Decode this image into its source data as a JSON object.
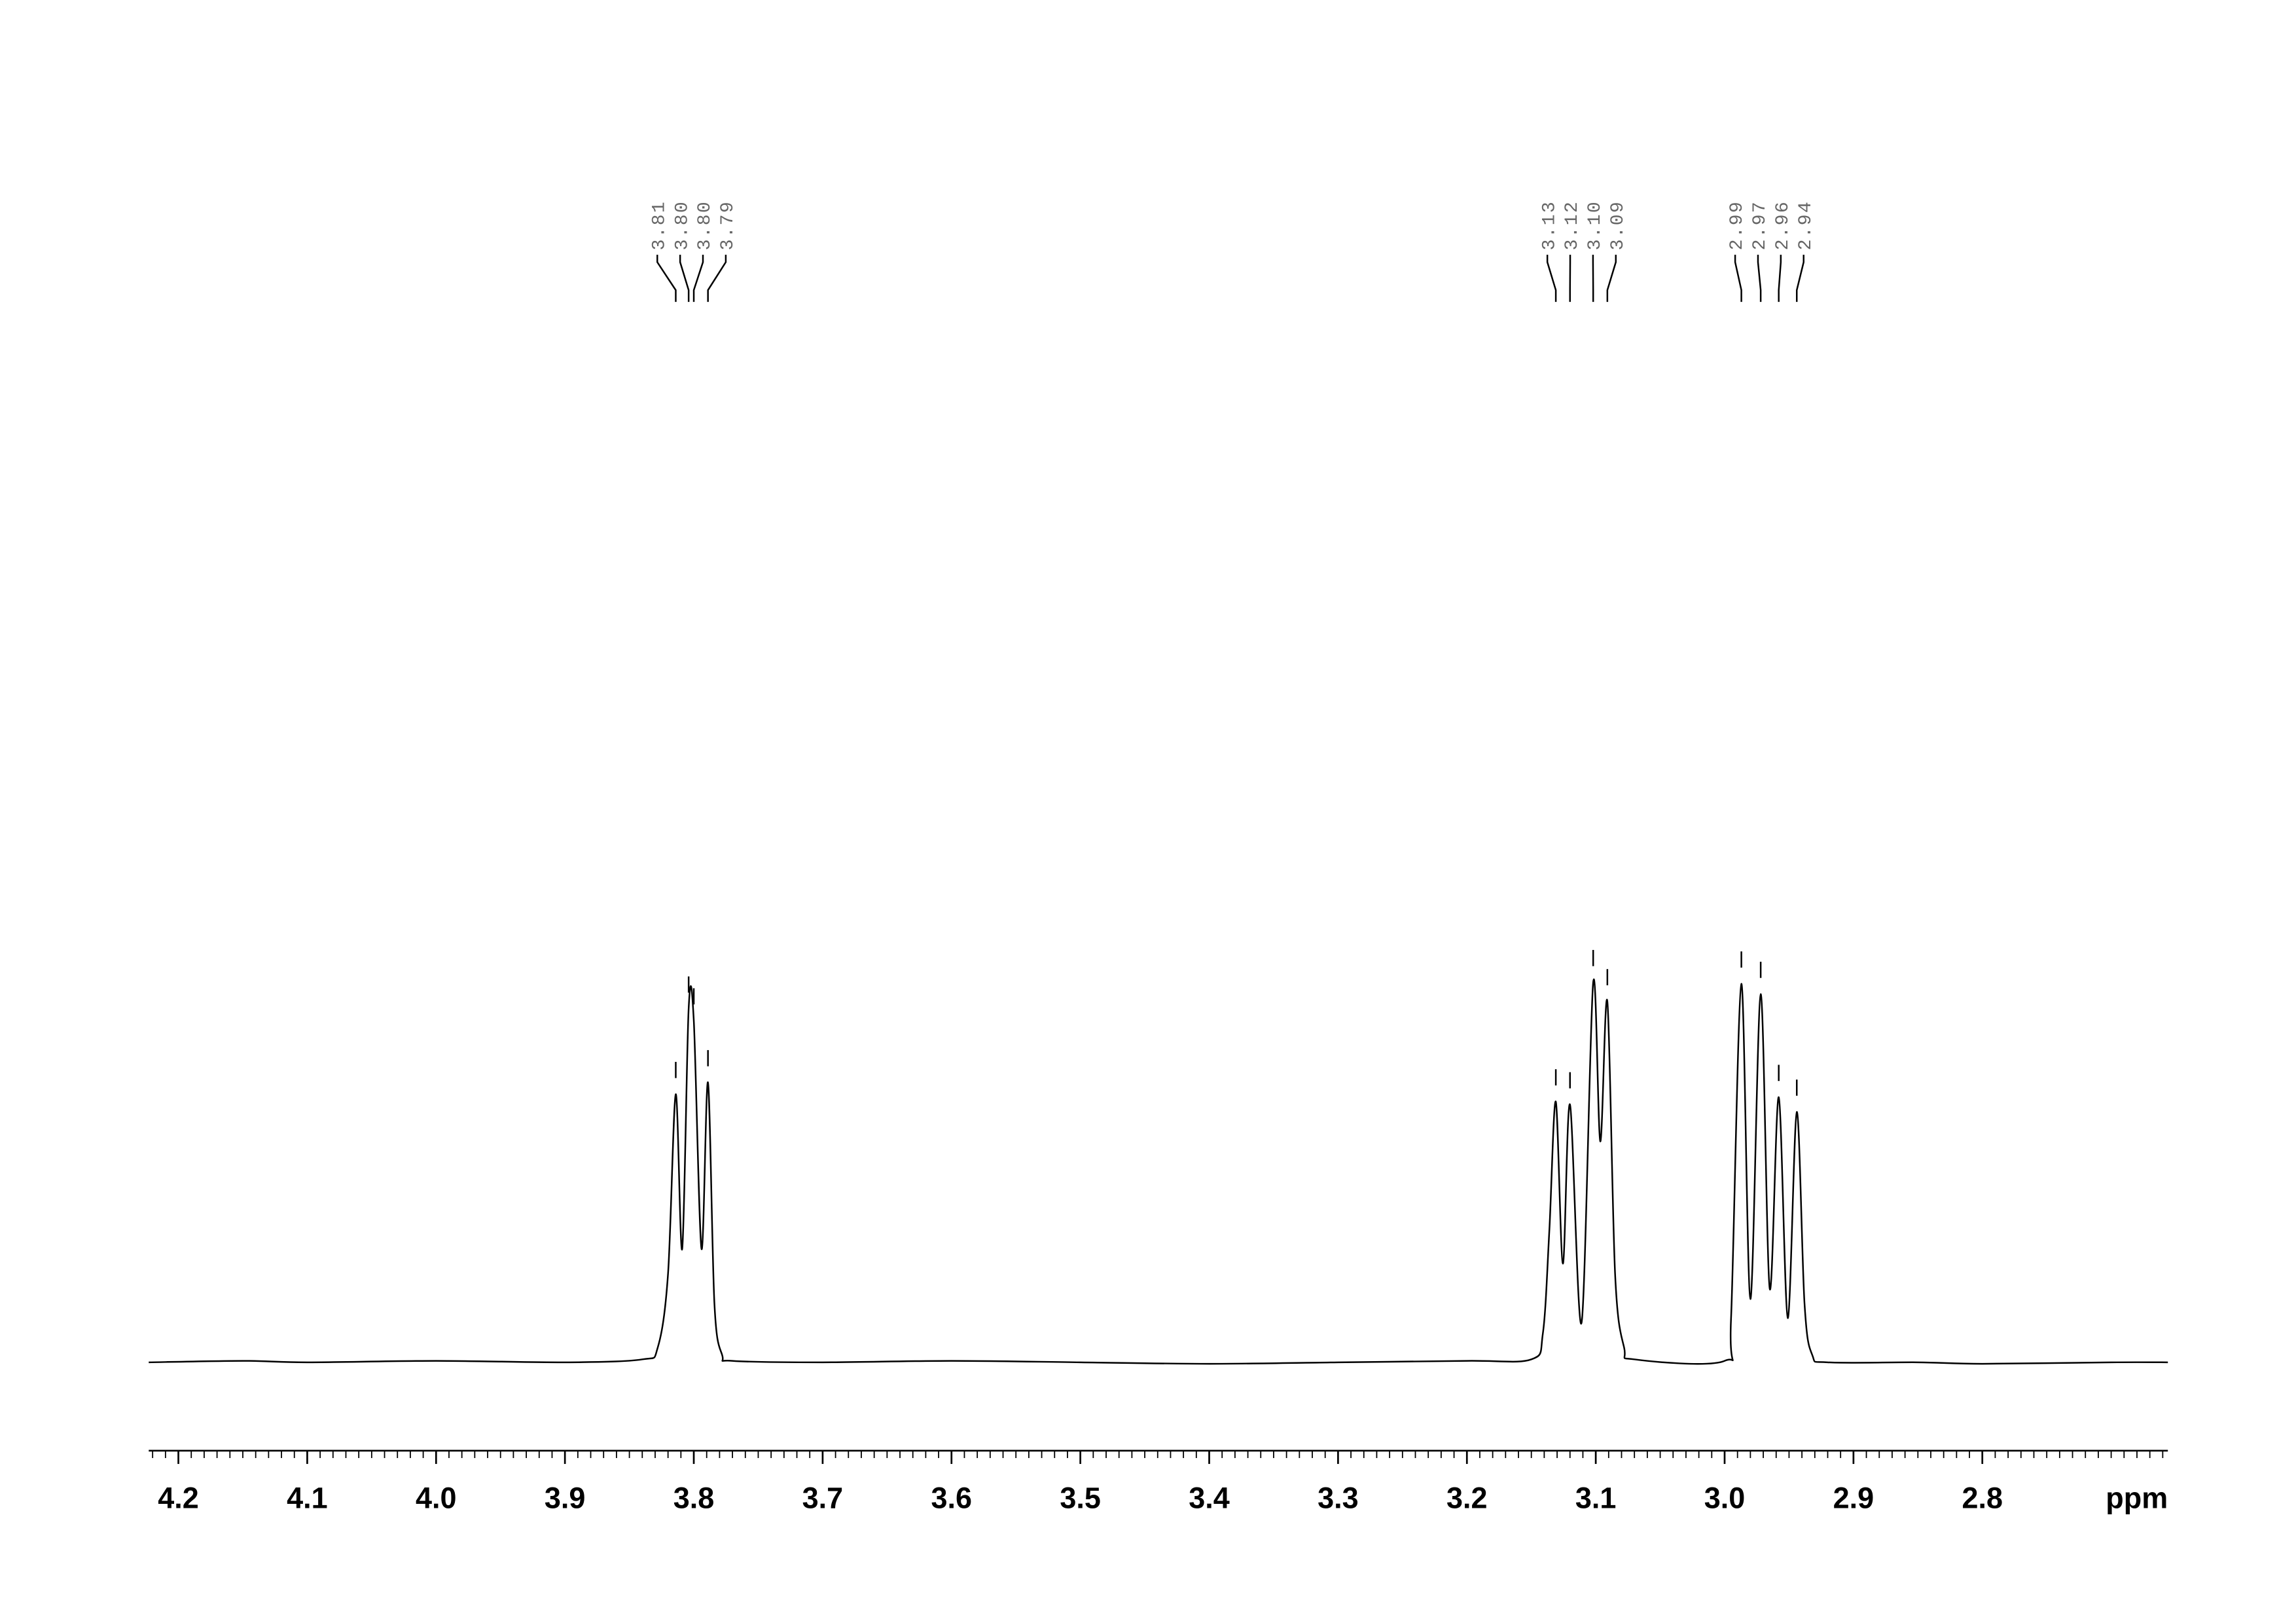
{
  "chart_data": {
    "type": "nmr",
    "x_label": "ppm",
    "xlim": [
      4.223,
      2.656
    ],
    "ylim": [
      -60,
      800
    ],
    "xticks": [
      4.2,
      4.1,
      {
        "value": 4.0,
        "label": "4.0"
      },
      3.9,
      3.8,
      3.7,
      3.6,
      3.5,
      3.4,
      3.3,
      3.2,
      3.1,
      {
        "value": 3.0,
        "label": "3.0"
      },
      2.9,
      2.8
    ],
    "color": "#000000",
    "x": [
      4.223,
      4.15,
      4.1,
      4.0,
      3.9,
      3.84,
      3.828,
      3.82,
      3.814,
      3.809,
      3.804,
      3.8,
      3.794,
      3.789,
      3.784,
      3.778,
      3.77,
      3.7,
      3.6,
      3.5,
      3.4,
      3.3,
      3.2,
      3.15,
      3.141,
      3.136,
      3.131,
      3.1255,
      3.12,
      3.111,
      3.102,
      3.0965,
      3.091,
      3.085,
      3.078,
      3.07,
      3.0,
      2.995,
      2.987,
      2.98,
      2.972,
      2.965,
      2.958,
      2.951,
      2.944,
      2.938,
      2.932,
      2.92,
      2.85,
      2.8,
      2.7,
      2.656
    ],
    "values": [
      0,
      1,
      0,
      1,
      0,
      2,
      10,
      60,
      182,
      77,
      240,
      232,
      77,
      190,
      40,
      5,
      1,
      0,
      1,
      0,
      -1,
      0,
      1,
      2,
      20,
      90,
      177,
      67,
      175,
      27,
      258,
      150,
      245,
      60,
      10,
      2,
      1,
      30,
      257,
      43,
      250,
      50,
      180,
      30,
      170,
      40,
      5,
      0,
      0,
      -1,
      0,
      0
    ],
    "peak_labels": [
      {
        "value": 3.814,
        "label": "3.81"
      },
      {
        "value": 3.804,
        "label": "3.80"
      },
      {
        "value": 3.8,
        "label": "3.80"
      },
      {
        "value": 3.789,
        "label": "3.79"
      },
      {
        "value": 3.131,
        "label": "3.13"
      },
      {
        "value": 3.12,
        "label": "3.12"
      },
      {
        "value": 3.102,
        "label": "3.10"
      },
      {
        "value": 3.091,
        "label": "3.09"
      },
      {
        "value": 2.987,
        "label": "2.99"
      },
      {
        "value": 2.972,
        "label": "2.97"
      },
      {
        "value": 2.958,
        "label": "2.96"
      },
      {
        "value": 2.944,
        "label": "2.94"
      }
    ],
    "peak_heights": [
      182,
      240,
      232,
      190,
      177,
      175,
      258,
      245,
      257,
      250,
      180,
      170
    ]
  }
}
